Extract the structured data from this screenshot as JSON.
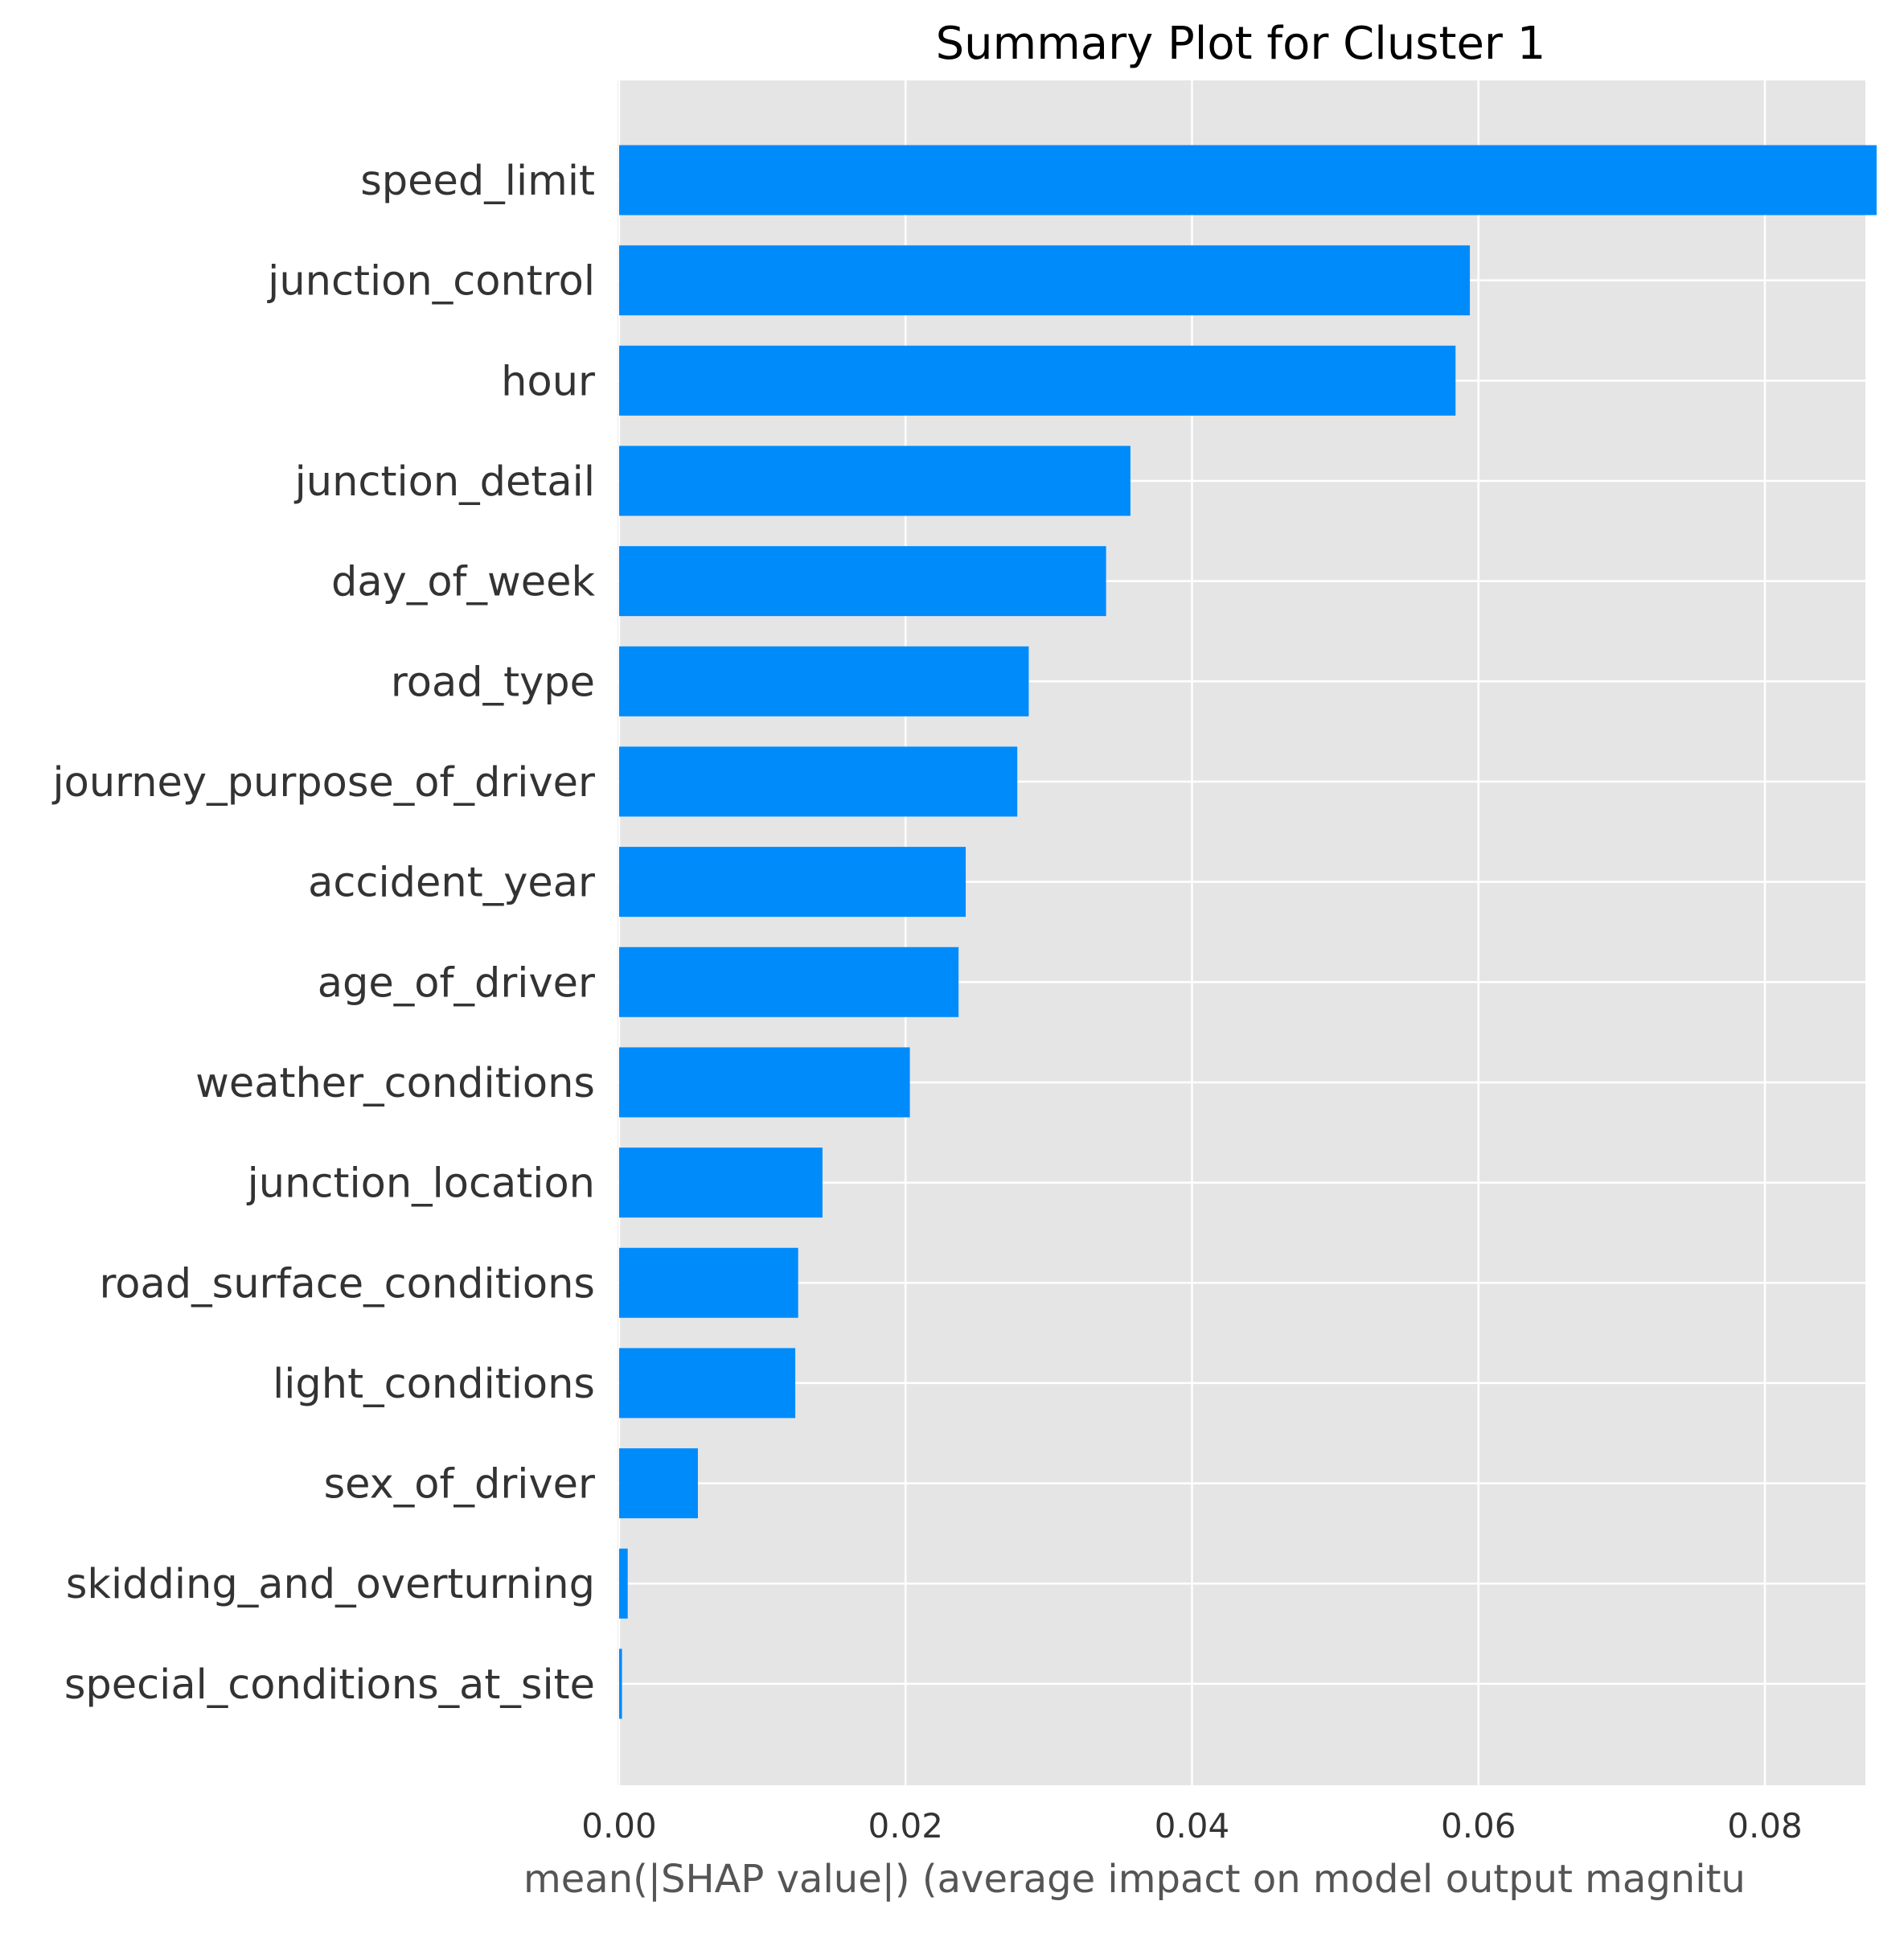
{
  "chart_data": {
    "type": "bar",
    "orientation": "horizontal",
    "title": "Summary Plot for Cluster 1",
    "xlabel": "mean(|SHAP value|) (average impact on model output magnitu",
    "ylabel": "",
    "xlim": [
      0,
      0.092
    ],
    "xticks": [
      0.0,
      0.02,
      0.04,
      0.06,
      0.08
    ],
    "xtick_labels": [
      "0.00",
      "0.02",
      "0.04",
      "0.06",
      "0.08"
    ],
    "grid": true,
    "legend": "none",
    "categories": [
      "speed_limit",
      "junction_control",
      "hour",
      "junction_detail",
      "day_of_week",
      "road_type",
      "journey_purpose_of_driver",
      "accident_year",
      "age_of_driver",
      "weather_conditions",
      "junction_location",
      "road_surface_conditions",
      "light_conditions",
      "sex_of_driver",
      "skidding_and_overturning",
      "special_conditions_at_site"
    ],
    "values": [
      0.0878,
      0.0594,
      0.0584,
      0.0357,
      0.034,
      0.0286,
      0.0278,
      0.0242,
      0.0237,
      0.0203,
      0.0142,
      0.0125,
      0.0123,
      0.0055,
      0.0006,
      0.0002
    ],
    "colors": {
      "bar": "#008bfb",
      "plot_background": "#e5e5e5",
      "grid": "#ffffff"
    }
  }
}
